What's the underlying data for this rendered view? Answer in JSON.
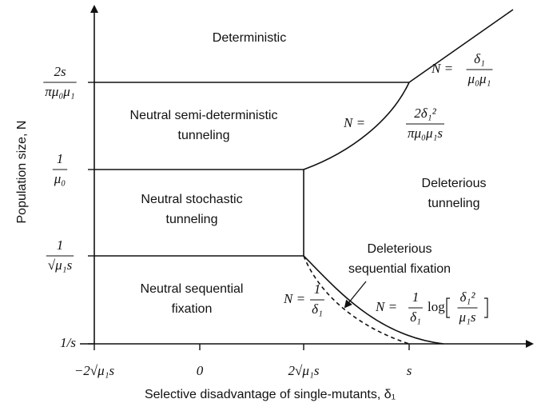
{
  "axes": {
    "x_label": "Selective disadvantage of single-mutants, δ₁",
    "y_label": "Population size, N"
  },
  "x_ticks": [
    "−2√μ₁s",
    "0",
    "2√μ₁s",
    "s"
  ],
  "y_ticks": [
    {
      "text": "1/s"
    },
    {
      "num": "1",
      "den": "√μ₁s"
    },
    {
      "num": "1",
      "den": "μ₀"
    },
    {
      "num": "2s",
      "den": "πμ₀μ₁"
    }
  ],
  "regions": [
    {
      "lines": [
        "Deterministic"
      ]
    },
    {
      "lines": [
        "Neutral semi-deterministic",
        "tunneling"
      ]
    },
    {
      "lines": [
        "Neutral stochastic",
        "tunneling"
      ]
    },
    {
      "lines": [
        "Deleterious",
        "tunneling"
      ]
    },
    {
      "lines": [
        "Neutral sequential",
        "fixation"
      ]
    },
    {
      "lines": [
        "Deleterious",
        "sequential fixation"
      ]
    }
  ],
  "boundary_labels": [
    {
      "lhs": "N =",
      "num": "δ₁",
      "den": "μ₀μ₁"
    },
    {
      "lhs": "N =",
      "num": "2δ₁²",
      "den": "πμ₀μ₁s"
    },
    {
      "lhs": "N =",
      "num": "1",
      "den": "δ₁"
    },
    {
      "lhs": "N =",
      "num": "1",
      "den": "δ₁",
      "op": "log",
      "inner_num": "δ₁²",
      "inner_den": "μ₁s"
    }
  ]
}
